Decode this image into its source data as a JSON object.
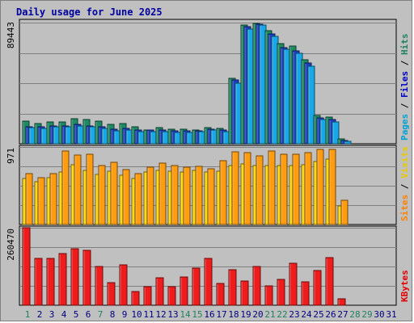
{
  "title": "Daily usage for June 2025",
  "chart_data": [
    {
      "panel": "pages-files-hits",
      "type": "bar",
      "categories": [
        "1",
        "2",
        "3",
        "4",
        "5",
        "6",
        "7",
        "8",
        "9",
        "10",
        "11",
        "12",
        "13",
        "14",
        "15",
        "16",
        "17",
        "18",
        "19",
        "20",
        "21",
        "22",
        "23",
        "24",
        "25",
        "26",
        "27",
        "28",
        "29",
        "30",
        "31"
      ],
      "ytick_label": "89443",
      "ylim": [
        0,
        89443
      ],
      "axis_label_parts": [
        {
          "text": "Pages",
          "color": "#00a0d0"
        },
        {
          "text": " / ",
          "color": "#000000"
        },
        {
          "text": "Files",
          "color": "#0000c0"
        },
        {
          "text": " / ",
          "color": "#000000"
        },
        {
          "text": "Hits",
          "color": "#208060"
        }
      ],
      "series": [
        {
          "name": "Hits",
          "color": "#1d8a62",
          "values": [
            16500,
            15000,
            15900,
            15900,
            18400,
            17600,
            16700,
            14300,
            14900,
            12800,
            9900,
            12200,
            11000,
            10500,
            10400,
            11900,
            11600,
            48500,
            87900,
            89000,
            83600,
            74000,
            72000,
            62000,
            21000,
            19500,
            3500,
            0,
            0,
            0,
            0
          ]
        },
        {
          "name": "Files",
          "color": "#1c3ec4",
          "values": [
            12700,
            12500,
            13300,
            13000,
            14100,
            13400,
            12600,
            10800,
            11100,
            10100,
            10200,
            10000,
            9800,
            9400,
            9600,
            10900,
            10400,
            47000,
            86500,
            88000,
            81000,
            70900,
            68500,
            59900,
            19300,
            18000,
            2300,
            0,
            0,
            0,
            0
          ]
        },
        {
          "name": "Pages",
          "color": "#18a8e8",
          "values": [
            11800,
            11600,
            12300,
            12300,
            13400,
            12500,
            11300,
            9500,
            10100,
            8700,
            8900,
            9200,
            8600,
            8600,
            8700,
            10000,
            9000,
            45000,
            84900,
            87500,
            79600,
            69600,
            67000,
            57500,
            17700,
            16300,
            1800,
            0,
            0,
            0,
            0
          ]
        }
      ]
    },
    {
      "panel": "visits-sites",
      "type": "bar",
      "categories": [
        "1",
        "2",
        "3",
        "4",
        "5",
        "6",
        "7",
        "8",
        "9",
        "10",
        "11",
        "12",
        "13",
        "14",
        "15",
        "16",
        "17",
        "18",
        "19",
        "20",
        "21",
        "22",
        "23",
        "24",
        "25",
        "26",
        "27",
        "28",
        "29",
        "30",
        "31"
      ],
      "ytick_label": "971",
      "ylim": [
        0,
        971
      ],
      "axis_label_parts": [
        {
          "text": "Sites",
          "color": "#ff8000"
        },
        {
          "text": " / ",
          "color": "#000000"
        },
        {
          "text": "Visits",
          "color": "#e8c800"
        }
      ],
      "series": [
        {
          "name": "Visits",
          "color": "#ffd800",
          "values": [
            579,
            541,
            590,
            656,
            747,
            681,
            627,
            668,
            621,
            579,
            660,
            681,
            672,
            660,
            681,
            660,
            668,
            738,
            762,
            742,
            738,
            738,
            734,
            752,
            792,
            822,
            228,
            0,
            0,
            0,
            0
          ]
        },
        {
          "name": "Sites",
          "color": "#ff9c10",
          "values": [
            638,
            590,
            636,
            922,
            865,
            876,
            740,
            775,
            685,
            638,
            723,
            765,
            743,
            723,
            726,
            701,
            797,
            910,
            900,
            862,
            918,
            880,
            880,
            903,
            945,
            943,
            304,
            0,
            0,
            0,
            0
          ]
        }
      ]
    },
    {
      "panel": "kbytes",
      "type": "bar",
      "categories": [
        "1",
        "2",
        "3",
        "4",
        "5",
        "6",
        "7",
        "8",
        "9",
        "10",
        "11",
        "12",
        "13",
        "14",
        "15",
        "16",
        "17",
        "18",
        "19",
        "20",
        "21",
        "22",
        "23",
        "24",
        "25",
        "26",
        "27",
        "28",
        "29",
        "30",
        "31"
      ],
      "ytick_label": "260470",
      "ylim": [
        0,
        260470
      ],
      "axis_label_parts": [
        {
          "text": "KBytes",
          "color": "#e00000"
        }
      ],
      "series": [
        {
          "name": "KBytes",
          "color": "#ee1c1c",
          "values": [
            260470,
            157000,
            158000,
            175000,
            190000,
            184000,
            130000,
            76000,
            137000,
            47000,
            63000,
            92000,
            63000,
            95000,
            124000,
            158000,
            73000,
            120000,
            81000,
            131000,
            64000,
            88000,
            140000,
            78000,
            116000,
            160000,
            21000,
            0,
            0,
            0,
            0
          ]
        }
      ]
    }
  ],
  "x_tick_colors": [
    "#208060",
    "#000080",
    "#000080",
    "#000080",
    "#000080",
    "#000080",
    "#208060",
    "#000080",
    "#000080",
    "#000080",
    "#000080",
    "#000080",
    "#000080",
    "#208060",
    "#208060",
    "#000080",
    "#000080",
    "#000080",
    "#000080",
    "#000080",
    "#208060",
    "#208060",
    "#000080",
    "#000080",
    "#000080",
    "#000080",
    "#000080",
    "#208060",
    "#208060",
    "#000080",
    "#000080"
  ]
}
